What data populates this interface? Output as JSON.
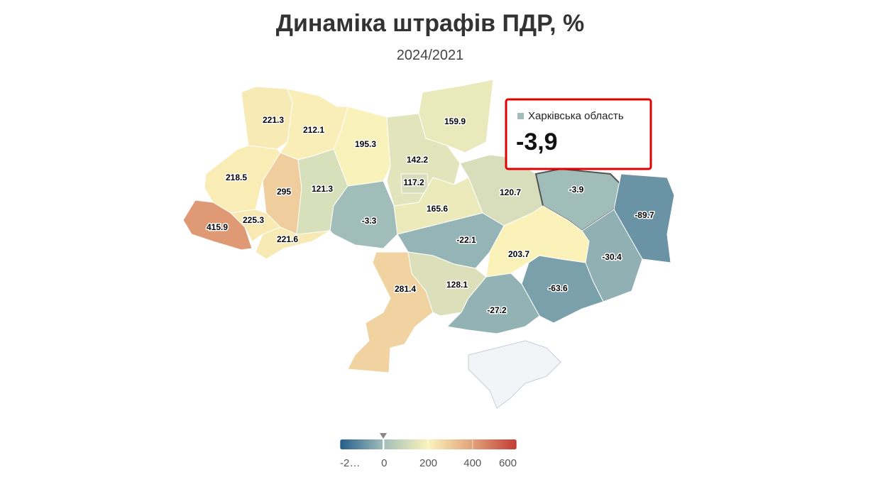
{
  "header": {
    "title": "Динаміка штрафів ПДР, %",
    "subtitle": "2024/2021"
  },
  "map": {
    "values": [
      221.3,
      212.1,
      195.3,
      159.9,
      142.2,
      117.2,
      120.7,
      -3.9,
      -89.7,
      218.5,
      295,
      121.3,
      -3.3,
      165.6,
      415.9,
      225.3,
      221.6,
      -22.1,
      203.7,
      -30.4,
      -63.6,
      281.4,
      128.1,
      -27.2
    ]
  },
  "tooltip": {
    "name": "Харківська область",
    "value": -3.9,
    "value_label": "-3,9"
  },
  "legend": {
    "range": [
      -200,
      600
    ],
    "ticks": [
      {
        "value": -200,
        "label": "-2…"
      },
      0,
      200,
      400,
      600
    ],
    "colors": [
      "#235d8c",
      "#a3bfba",
      "#fbf3bb",
      "#e2a27a",
      "#c23b35"
    ]
  }
}
